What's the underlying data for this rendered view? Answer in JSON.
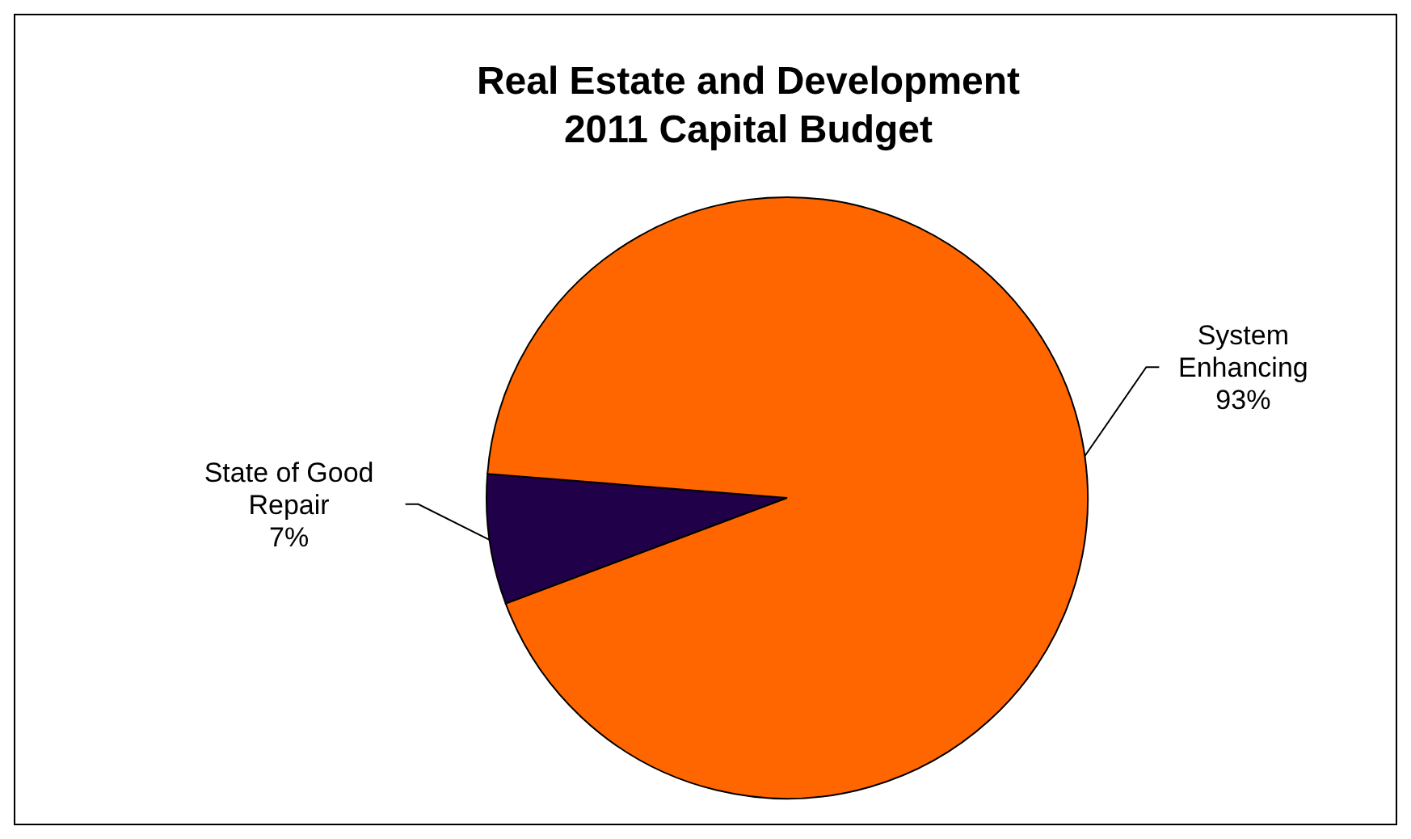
{
  "chart_data": {
    "type": "pie",
    "title": "Real Estate and Development\n2011 Capital Budget",
    "categories": [
      "State of Good Repair",
      "System Enhancing"
    ],
    "values": [
      7,
      93
    ],
    "colors": [
      "#200048",
      "#ff6600"
    ],
    "value_labels": [
      "7%",
      "93%"
    ]
  }
}
